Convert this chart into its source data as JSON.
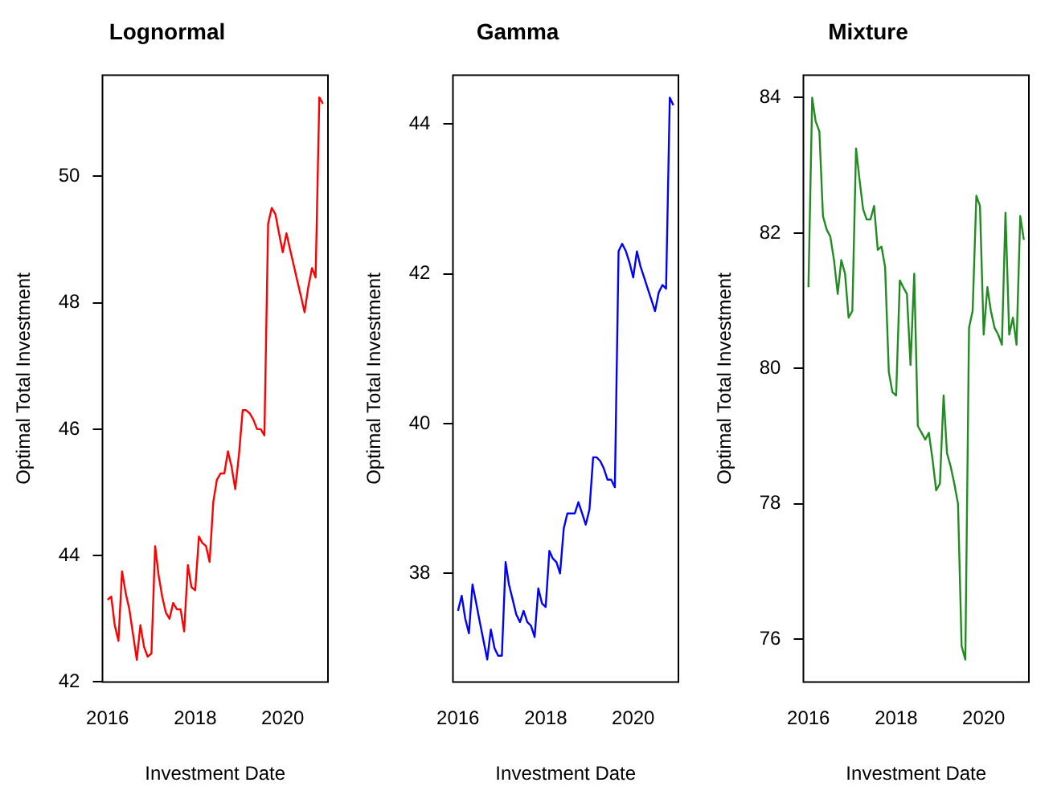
{
  "chart_data": [
    {
      "type": "line",
      "title": "Lognormal",
      "xlabel": "Investment Date",
      "ylabel": "Optimal Total Investment",
      "x": [
        "2016-01",
        "2016-02",
        "2016-03",
        "2016-04",
        "2016-05",
        "2016-06",
        "2016-07",
        "2016-08",
        "2016-09",
        "2016-10",
        "2016-11",
        "2016-12",
        "2017-01",
        "2017-02",
        "2017-03",
        "2017-04",
        "2017-05",
        "2017-06",
        "2017-07",
        "2017-08",
        "2017-09",
        "2017-10",
        "2017-11",
        "2017-12",
        "2018-01",
        "2018-02",
        "2018-03",
        "2018-04",
        "2018-05",
        "2018-06",
        "2018-07",
        "2018-08",
        "2018-09",
        "2018-10",
        "2018-11",
        "2018-12",
        "2019-01",
        "2019-02",
        "2019-03",
        "2019-04",
        "2019-05",
        "2019-06",
        "2019-07",
        "2019-08",
        "2019-09",
        "2019-10",
        "2019-11",
        "2019-12",
        "2020-01",
        "2020-02",
        "2020-03",
        "2020-04",
        "2020-05",
        "2020-06",
        "2020-07",
        "2020-08",
        "2020-09",
        "2020-10",
        "2020-11",
        "2020-12"
      ],
      "series": [
        {
          "color": "#ff0000",
          "values": [
            43.3,
            43.35,
            42.9,
            42.65,
            43.75,
            43.4,
            43.15,
            42.75,
            42.35,
            42.9,
            42.55,
            42.4,
            42.45,
            44.15,
            43.7,
            43.35,
            43.1,
            43.0,
            43.25,
            43.15,
            43.15,
            42.8,
            43.85,
            43.5,
            43.45,
            44.3,
            44.2,
            44.15,
            43.9,
            44.85,
            45.2,
            45.3,
            45.3,
            45.65,
            45.4,
            45.05,
            45.6,
            46.3,
            46.3,
            46.25,
            46.15,
            46.0,
            46.0,
            45.9,
            49.25,
            49.5,
            49.4,
            49.1,
            48.8,
            49.1,
            48.85,
            48.6,
            48.35,
            48.1,
            47.85,
            48.25,
            48.55,
            48.4,
            51.25,
            51.15
          ]
        }
      ],
      "xlim": [
        "2015-11-20",
        "2021-01-12"
      ],
      "xticks": [
        {
          "value": "2016-01-01",
          "label": "2016"
        },
        {
          "value": "2018-01-01",
          "label": "2018"
        },
        {
          "value": "2020-01-01",
          "label": "2020"
        }
      ],
      "ylim": [
        42,
        51.6
      ],
      "yticks": [
        42,
        44,
        46,
        48,
        50
      ],
      "grid": false,
      "legend": false,
      "line_style": "solid"
    },
    {
      "type": "line",
      "title": "Gamma",
      "xlabel": "Investment Date",
      "ylabel": "Optimal Total Investment",
      "x": [
        "2016-01",
        "2016-02",
        "2016-03",
        "2016-04",
        "2016-05",
        "2016-06",
        "2016-07",
        "2016-08",
        "2016-09",
        "2016-10",
        "2016-11",
        "2016-12",
        "2017-01",
        "2017-02",
        "2017-03",
        "2017-04",
        "2017-05",
        "2017-06",
        "2017-07",
        "2017-08",
        "2017-09",
        "2017-10",
        "2017-11",
        "2017-12",
        "2018-01",
        "2018-02",
        "2018-03",
        "2018-04",
        "2018-05",
        "2018-06",
        "2018-07",
        "2018-08",
        "2018-09",
        "2018-10",
        "2018-11",
        "2018-12",
        "2019-01",
        "2019-02",
        "2019-03",
        "2019-04",
        "2019-05",
        "2019-06",
        "2019-07",
        "2019-08",
        "2019-09",
        "2019-10",
        "2019-11",
        "2019-12",
        "2020-01",
        "2020-02",
        "2020-03",
        "2020-04",
        "2020-05",
        "2020-06",
        "2020-07",
        "2020-08",
        "2020-09",
        "2020-10",
        "2020-11",
        "2020-12"
      ],
      "series": [
        {
          "color": "#0000ff",
          "values": [
            37.5,
            37.7,
            37.4,
            37.2,
            37.85,
            37.6,
            37.35,
            37.1,
            36.85,
            37.25,
            37.0,
            36.9,
            36.9,
            38.15,
            37.85,
            37.65,
            37.45,
            37.35,
            37.5,
            37.35,
            37.3,
            37.15,
            37.8,
            37.6,
            37.55,
            38.3,
            38.2,
            38.15,
            38.0,
            38.6,
            38.8,
            38.8,
            38.8,
            38.95,
            38.8,
            38.65,
            38.85,
            39.55,
            39.55,
            39.5,
            39.4,
            39.25,
            39.25,
            39.15,
            42.3,
            42.4,
            42.3,
            42.15,
            41.95,
            42.3,
            42.1,
            41.95,
            41.8,
            41.65,
            41.5,
            41.75,
            41.85,
            41.8,
            44.35,
            44.25
          ]
        }
      ],
      "xlim": [
        "2015-11-20",
        "2021-01-12"
      ],
      "xticks": [
        {
          "value": "2016-01-01",
          "label": "2016"
        },
        {
          "value": "2018-01-01",
          "label": "2018"
        },
        {
          "value": "2020-01-01",
          "label": "2020"
        }
      ],
      "ylim": [
        36.55,
        44.65
      ],
      "yticks": [
        38,
        40,
        42,
        44
      ],
      "grid": false,
      "legend": false,
      "line_style": "solid"
    },
    {
      "type": "line",
      "title": "Mixture",
      "xlabel": "Investment Date",
      "ylabel": "Optimal Total Investment",
      "x": [
        "2016-01",
        "2016-02",
        "2016-03",
        "2016-04",
        "2016-05",
        "2016-06",
        "2016-07",
        "2016-08",
        "2016-09",
        "2016-10",
        "2016-11",
        "2016-12",
        "2017-01",
        "2017-02",
        "2017-03",
        "2017-04",
        "2017-05",
        "2017-06",
        "2017-07",
        "2017-08",
        "2017-09",
        "2017-10",
        "2017-11",
        "2017-12",
        "2018-01",
        "2018-02",
        "2018-03",
        "2018-04",
        "2018-05",
        "2018-06",
        "2018-07",
        "2018-08",
        "2018-09",
        "2018-10",
        "2018-11",
        "2018-12",
        "2019-01",
        "2019-02",
        "2019-03",
        "2019-04",
        "2019-05",
        "2019-06",
        "2019-07",
        "2019-08",
        "2019-09",
        "2019-10",
        "2019-11",
        "2019-12",
        "2020-01",
        "2020-02",
        "2020-03",
        "2020-04",
        "2020-05",
        "2020-06",
        "2020-07",
        "2020-08",
        "2020-09",
        "2020-10",
        "2020-11",
        "2020-12"
      ],
      "series": [
        {
          "color": "#228b22",
          "values": [
            81.2,
            84.0,
            83.65,
            83.5,
            82.25,
            82.05,
            81.95,
            81.6,
            81.1,
            81.6,
            81.4,
            80.75,
            80.85,
            83.25,
            82.8,
            82.35,
            82.2,
            82.2,
            82.4,
            81.75,
            81.8,
            81.5,
            79.95,
            79.65,
            79.6,
            81.3,
            81.2,
            81.1,
            80.05,
            81.4,
            79.15,
            79.05,
            78.95,
            79.05,
            78.65,
            78.2,
            78.3,
            79.6,
            78.75,
            78.55,
            78.3,
            78.0,
            75.9,
            75.7,
            80.6,
            80.85,
            82.55,
            82.4,
            80.5,
            81.2,
            80.85,
            80.6,
            80.5,
            80.35,
            82.3,
            80.5,
            80.75,
            80.35,
            82.25,
            81.9
          ]
        }
      ],
      "xlim": [
        "2015-11-20",
        "2021-01-12"
      ],
      "xticks": [
        {
          "value": "2016-01-01",
          "label": "2016"
        },
        {
          "value": "2018-01-01",
          "label": "2018"
        },
        {
          "value": "2020-01-01",
          "label": "2020"
        }
      ],
      "ylim": [
        75.37,
        84.33
      ],
      "yticks": [
        76,
        78,
        80,
        82,
        84
      ],
      "grid": false,
      "legend": false,
      "line_style": "solid"
    }
  ]
}
